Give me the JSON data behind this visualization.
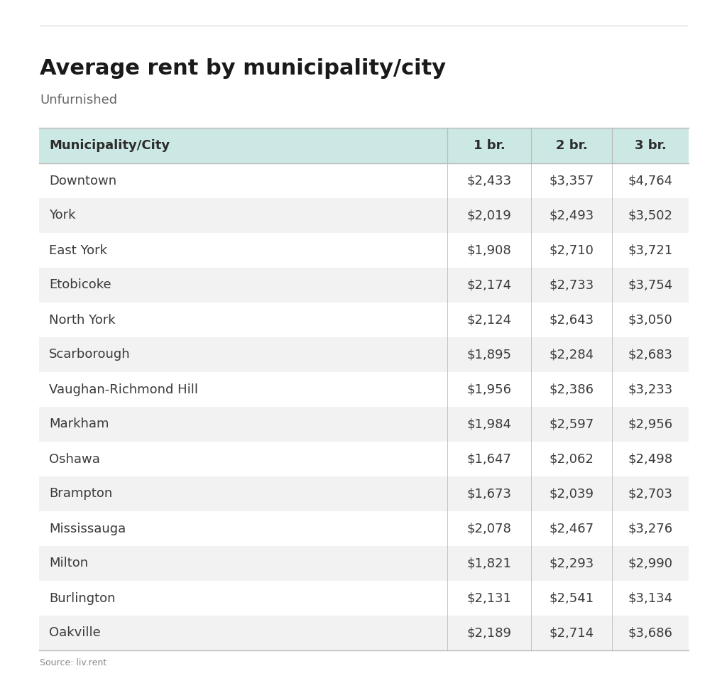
{
  "title": "Average rent by municipality/city",
  "subtitle": "Unfurnished",
  "source": "Source: liv.rent",
  "columns": [
    "Municipality/City",
    "1 br.",
    "2 br.",
    "3 br."
  ],
  "rows": [
    [
      "Downtown",
      "$2,433",
      "$3,357",
      "$4,764"
    ],
    [
      "York",
      "$2,019",
      "$2,493",
      "$3,502"
    ],
    [
      "East York",
      "$1,908",
      "$2,710",
      "$3,721"
    ],
    [
      "Etobicoke",
      "$2,174",
      "$2,733",
      "$3,754"
    ],
    [
      "North York",
      "$2,124",
      "$2,643",
      "$3,050"
    ],
    [
      "Scarborough",
      "$1,895",
      "$2,284",
      "$2,683"
    ],
    [
      "Vaughan-Richmond Hill",
      "$1,956",
      "$2,386",
      "$3,233"
    ],
    [
      "Markham",
      "$1,984",
      "$2,597",
      "$2,956"
    ],
    [
      "Oshawa",
      "$1,647",
      "$2,062",
      "$2,498"
    ],
    [
      "Brampton",
      "$1,673",
      "$2,039",
      "$2,703"
    ],
    [
      "Mississauga",
      "$2,078",
      "$2,467",
      "$3,276"
    ],
    [
      "Milton",
      "$1,821",
      "$2,293",
      "$2,990"
    ],
    [
      "Burlington",
      "$2,131",
      "$2,541",
      "$3,134"
    ],
    [
      "Oakville",
      "$2,189",
      "$2,714",
      "$3,686"
    ]
  ],
  "header_bg": "#cce8e4",
  "shaded_row_bg": "#f2f2f2",
  "white_row_bg": "#ffffff",
  "background_color": "#ffffff",
  "header_text_color": "#2c2c2c",
  "row_text_color": "#3a3a3a",
  "title_color": "#1a1a1a",
  "subtitle_color": "#666666",
  "source_color": "#888888",
  "top_line_color": "#dddddd",
  "sep_line_color": "#bbbbbb"
}
